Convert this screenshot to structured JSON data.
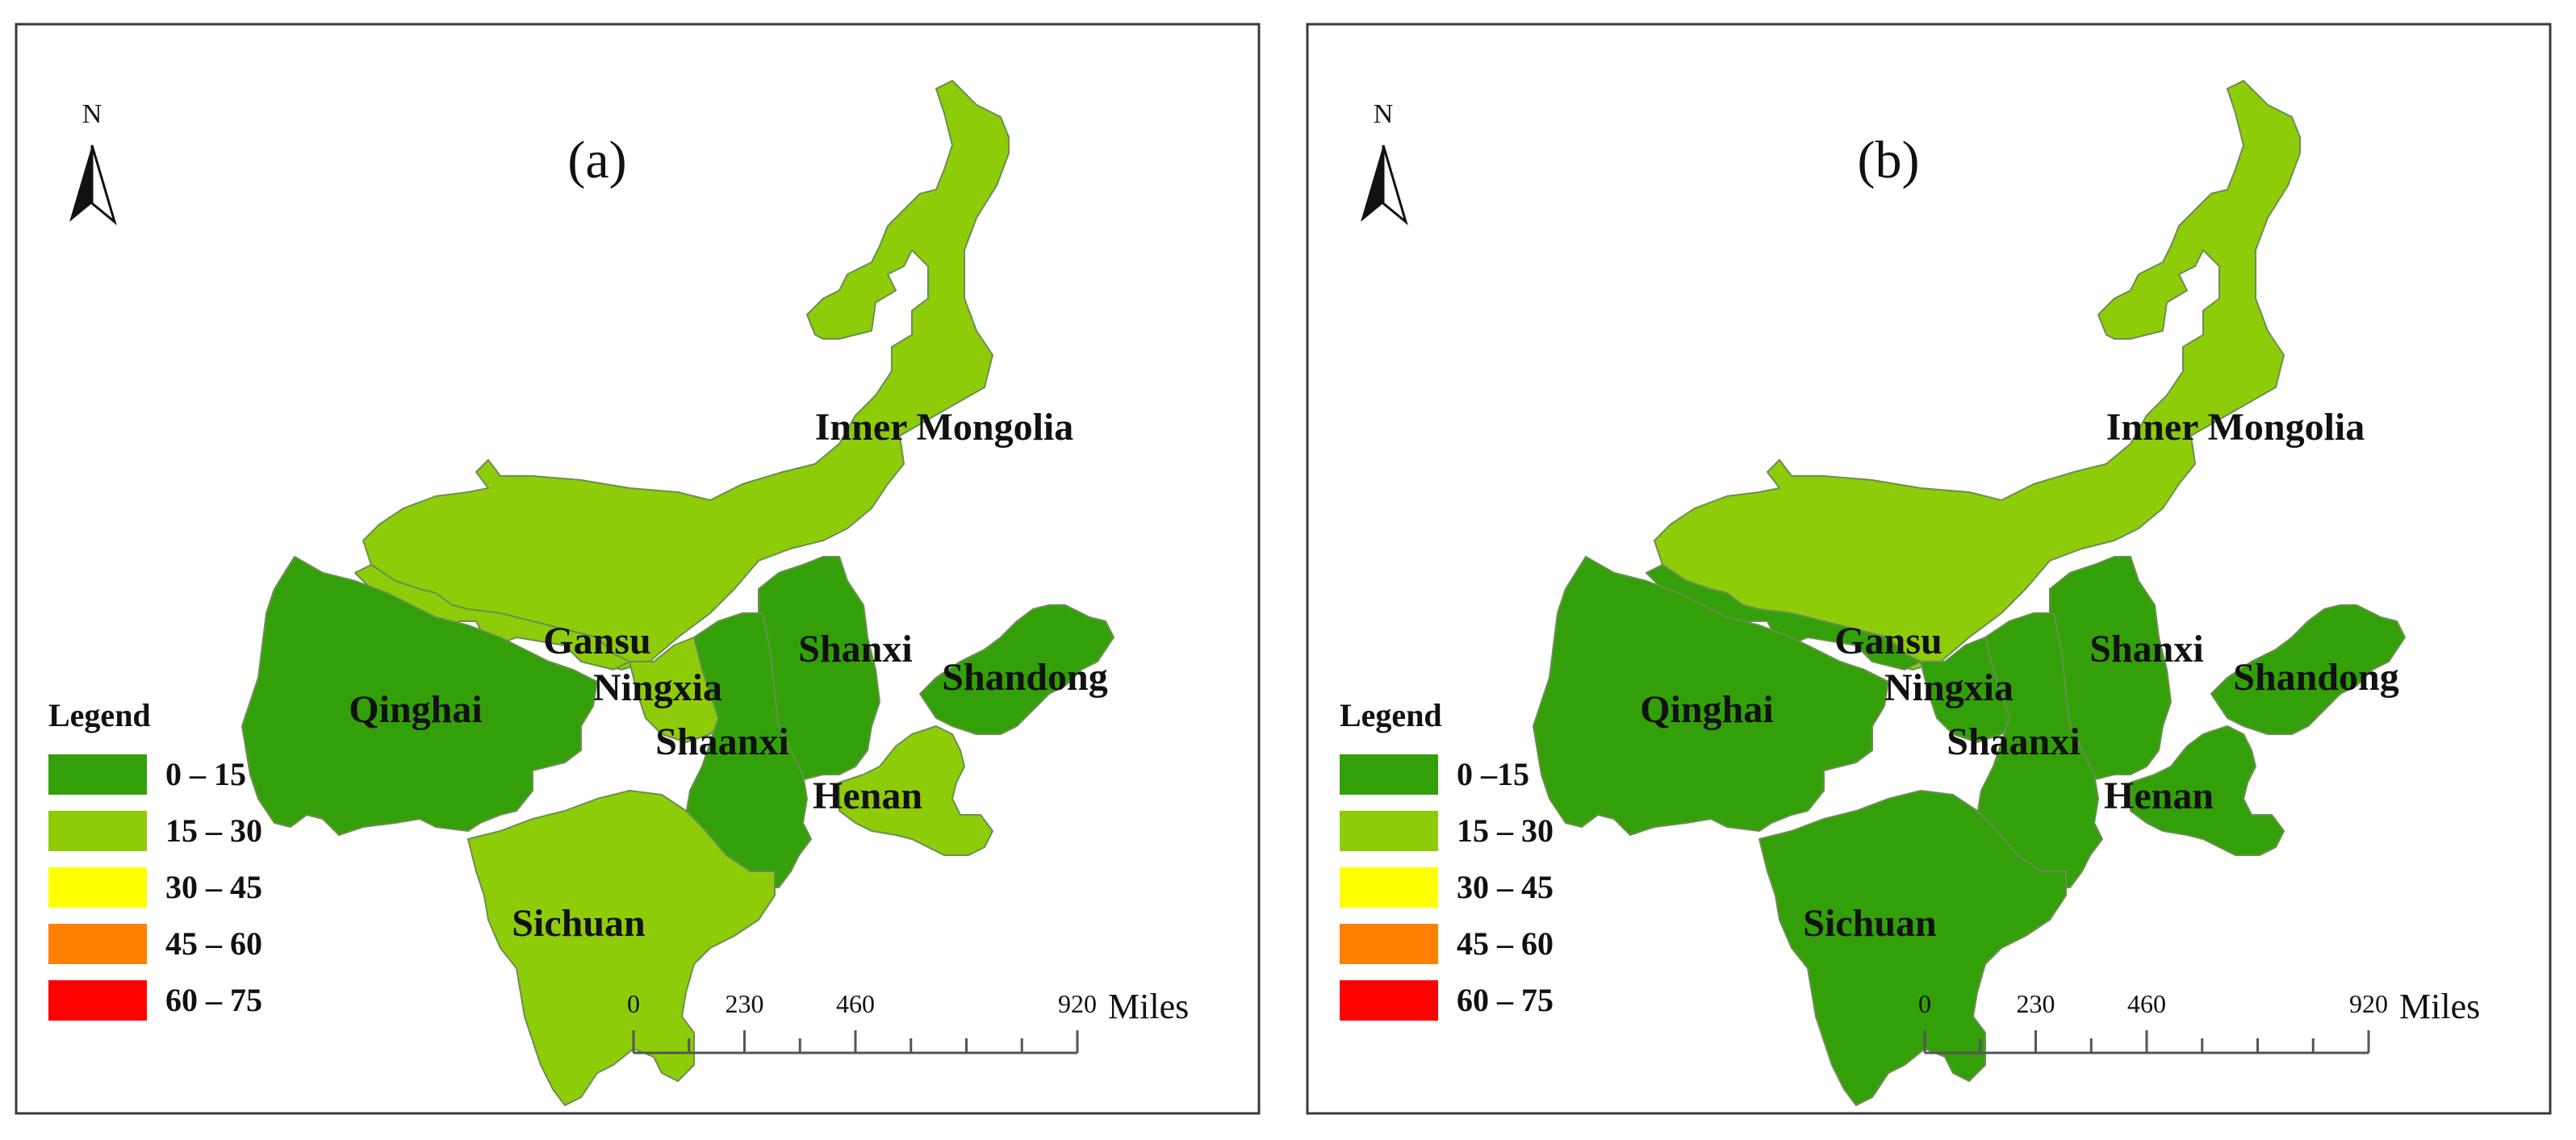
{
  "panels": [
    {
      "id": "a",
      "title": "(a)",
      "north_label": "N",
      "legend_title": "Legend",
      "classes": [
        {
          "label": "0 – 15",
          "color": "#33a00a"
        },
        {
          "label": "15 – 30",
          "color": "#8ecc0a"
        },
        {
          "label": "30 – 45",
          "color": "#ffff00"
        },
        {
          "label": "45 – 60",
          "color": "#ff8000"
        },
        {
          "label": "60 – 75",
          "color": "#ff0000"
        }
      ],
      "scale": {
        "ticks": [
          "0",
          "230",
          "460",
          "920"
        ],
        "unit": "Miles"
      },
      "provinces": [
        {
          "name": "Inner Mongolia",
          "class_index": 1
        },
        {
          "name": "Gansu",
          "class_index": 1
        },
        {
          "name": "Ningxia",
          "class_index": 1
        },
        {
          "name": "Qinghai",
          "class_index": 0
        },
        {
          "name": "Shanxi",
          "class_index": 0
        },
        {
          "name": "Shandong",
          "class_index": 0
        },
        {
          "name": "Shaanxi",
          "class_index": 0
        },
        {
          "name": "Henan",
          "class_index": 1
        },
        {
          "name": "Sichuan",
          "class_index": 1
        }
      ]
    },
    {
      "id": "b",
      "title": "(b)",
      "north_label": "N",
      "legend_title": "Legend",
      "classes": [
        {
          "label": "0 –15",
          "color": "#33a00a"
        },
        {
          "label": "15 – 30",
          "color": "#8ecc0a"
        },
        {
          "label": "30 – 45",
          "color": "#ffff00"
        },
        {
          "label": "45 – 60",
          "color": "#ff8000"
        },
        {
          "label": "60 – 75",
          "color": "#ff0000"
        }
      ],
      "scale": {
        "ticks": [
          "0",
          "230",
          "460",
          "920"
        ],
        "unit": "Miles"
      },
      "provinces": [
        {
          "name": "Inner Mongolia",
          "class_index": 1
        },
        {
          "name": "Gansu",
          "class_index": 0
        },
        {
          "name": "Ningxia",
          "class_index": 0
        },
        {
          "name": "Qinghai",
          "class_index": 0
        },
        {
          "name": "Shanxi",
          "class_index": 0
        },
        {
          "name": "Shandong",
          "class_index": 0
        },
        {
          "name": "Shaanxi",
          "class_index": 0
        },
        {
          "name": "Henan",
          "class_index": 0
        },
        {
          "name": "Sichuan",
          "class_index": 0
        }
      ]
    }
  ]
}
